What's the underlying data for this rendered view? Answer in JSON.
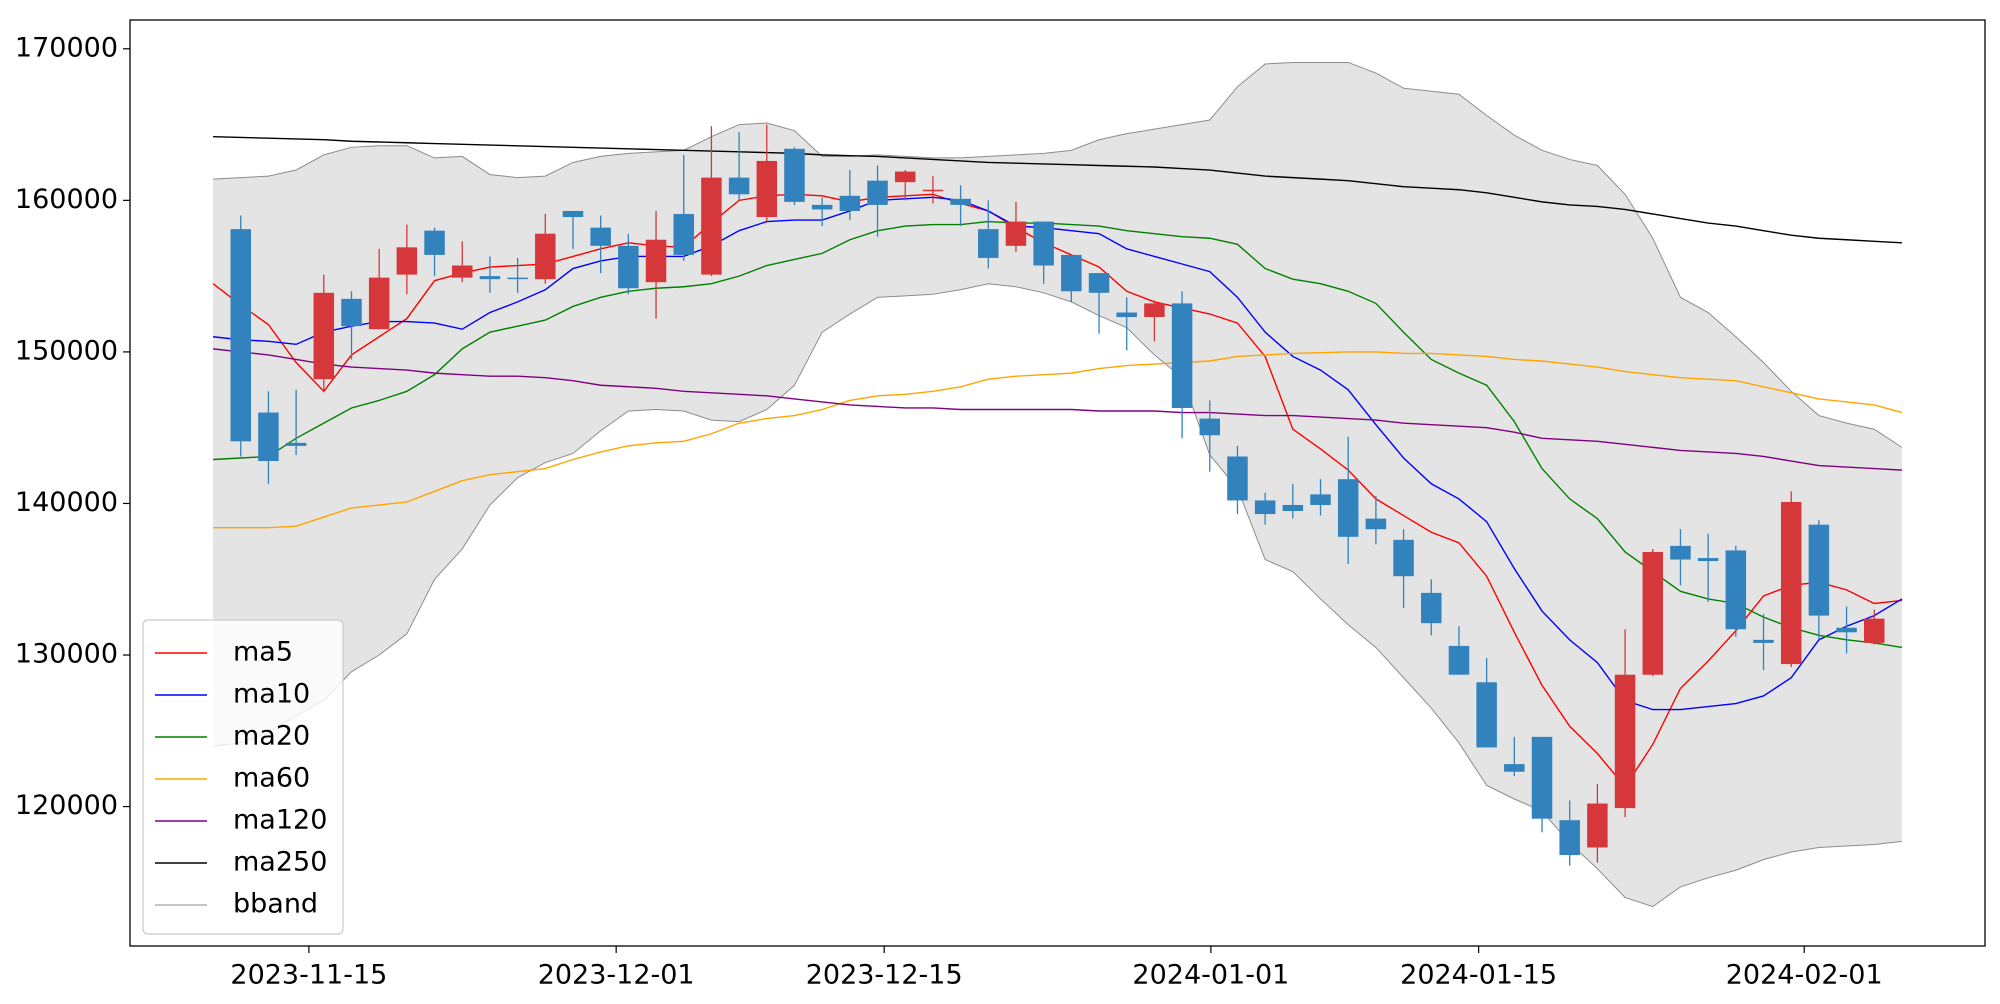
{
  "chart_data": {
    "type": "candlestick",
    "ylim": [
      110800,
      171900
    ],
    "yticks": [
      120000,
      130000,
      140000,
      150000,
      160000,
      170000
    ],
    "xlim": [
      -3.0,
      64.0
    ],
    "xticks": [
      {
        "value": 3.46,
        "label": "2023-11-15"
      },
      {
        "value": 14.56,
        "label": "2023-12-01"
      },
      {
        "value": 24.24,
        "label": "2023-12-15"
      },
      {
        "value": 36.04,
        "label": "2024-01-01"
      },
      {
        "value": 45.71,
        "label": "2024-01-15"
      },
      {
        "value": 57.47,
        "label": "2024-02-01"
      }
    ],
    "legend": "lower left",
    "candles": {
      "up_color": "#d6373a",
      "down_color": "#3182bd",
      "x": [
        1,
        2,
        3,
        4,
        5,
        6,
        7,
        8,
        9,
        10,
        11,
        12,
        13,
        14,
        15,
        16,
        17,
        18,
        19,
        20,
        21,
        22,
        23,
        24,
        25,
        26,
        27,
        28,
        29,
        30,
        31,
        32,
        33,
        34,
        35,
        36,
        37,
        38,
        39,
        40,
        41,
        42,
        43,
        44,
        45,
        46,
        47,
        48,
        49,
        50,
        51,
        52,
        53,
        54,
        55,
        56,
        57,
        58,
        59,
        60
      ],
      "open": [
        158100,
        146000,
        144000,
        148200,
        153500,
        151500,
        155100,
        158000,
        154900,
        155000,
        154900,
        154800,
        159300,
        158200,
        157000,
        154600,
        159100,
        155100,
        161500,
        158900,
        163400,
        159700,
        160300,
        161300,
        161200,
        160600,
        160100,
        158100,
        157000,
        158600,
        156400,
        155200,
        152600,
        152300,
        153200,
        145600,
        143100,
        140200,
        139900,
        140600,
        141600,
        139000,
        137600,
        134100,
        130600,
        128200,
        122800,
        124600,
        119100,
        117300,
        119900,
        128700,
        137200,
        136400,
        136900,
        131000,
        129400,
        138600,
        131800,
        130800
      ],
      "high": [
        159000,
        147400,
        147500,
        155100,
        154000,
        156800,
        158400,
        158200,
        157300,
        156300,
        156200,
        159100,
        159300,
        159000,
        157800,
        159300,
        163000,
        164900,
        164500,
        165000,
        163500,
        160200,
        162000,
        162300,
        162000,
        161600,
        161000,
        160000,
        159900,
        158600,
        156400,
        155200,
        153600,
        153400,
        154000,
        146800,
        143800,
        140700,
        141300,
        141600,
        144400,
        140500,
        138300,
        135000,
        131900,
        129800,
        124600,
        124600,
        120400,
        121500,
        131700,
        137000,
        138300,
        138000,
        137200,
        132700,
        140800,
        138900,
        133200,
        133000
      ],
      "low": [
        143100,
        141300,
        143200,
        147400,
        149500,
        151500,
        153800,
        155000,
        154600,
        153900,
        153900,
        154500,
        156800,
        155200,
        153800,
        152200,
        156000,
        155000,
        160000,
        158600,
        159700,
        158300,
        158700,
        157600,
        160000,
        159800,
        158300,
        155500,
        156600,
        154500,
        153300,
        151200,
        150100,
        150700,
        144300,
        142100,
        139300,
        138600,
        139000,
        139200,
        136000,
        137300,
        133100,
        131300,
        128700,
        123900,
        122000,
        118300,
        116100,
        116300,
        119300,
        128600,
        134600,
        133500,
        131200,
        129000,
        129200,
        131000,
        130100,
        130700
      ],
      "close": [
        144100,
        142800,
        143800,
        153900,
        151700,
        154900,
        156900,
        156400,
        155700,
        154800,
        154800,
        157800,
        158900,
        157000,
        154200,
        157400,
        156400,
        161500,
        160400,
        162600,
        159900,
        159400,
        159300,
        159700,
        161900,
        160700,
        159700,
        156200,
        158600,
        155700,
        154000,
        153900,
        152300,
        153200,
        146300,
        144500,
        140200,
        139300,
        139500,
        139900,
        137800,
        138300,
        135200,
        132100,
        128700,
        123900,
        122300,
        119200,
        116800,
        120200,
        128700,
        136800,
        136300,
        136200,
        131700,
        130800,
        140100,
        132600,
        131500,
        132400
      ]
    },
    "x": [
      0,
      1,
      2,
      3,
      4,
      5,
      6,
      7,
      8,
      9,
      10,
      11,
      12,
      13,
      14,
      15,
      16,
      17,
      18,
      19,
      20,
      21,
      22,
      23,
      24,
      25,
      26,
      27,
      28,
      29,
      30,
      31,
      32,
      33,
      34,
      35,
      36,
      37,
      38,
      39,
      40,
      41,
      42,
      43,
      44,
      45,
      46,
      47,
      48,
      49,
      50,
      51,
      52,
      53,
      54,
      55,
      56,
      57,
      58,
      59,
      60,
      61
    ],
    "bband": {
      "name": "bband",
      "color": "#8c8c8c",
      "fill": "#e4e4e4",
      "upper": [
        161400,
        161500,
        161600,
        162000,
        163000,
        163500,
        163600,
        163600,
        162800,
        162900,
        161700,
        161500,
        161600,
        162500,
        162900,
        163100,
        163200,
        163300,
        164200,
        165000,
        165100,
        164600,
        162900,
        162900,
        163000,
        162900,
        162800,
        162800,
        162900,
        163000,
        163100,
        163300,
        164000,
        164400,
        164700,
        165000,
        165300,
        167500,
        169000,
        169100,
        169100,
        169100,
        168400,
        167400,
        167200,
        167000,
        165600,
        164300,
        163300,
        162700,
        162300,
        160400,
        157500,
        153600,
        152600,
        151000,
        149300,
        147400,
        145800,
        145300,
        144900,
        143700
      ],
      "lower": [
        124000,
        124200,
        124900,
        126000,
        127000,
        128900,
        130000,
        131400,
        135000,
        137000,
        139900,
        141700,
        142700,
        143300,
        144800,
        146100,
        146200,
        146100,
        145500,
        145400,
        146200,
        147800,
        151300,
        152500,
        153600,
        153700,
        153800,
        154100,
        154500,
        154300,
        153900,
        153300,
        152400,
        151600,
        149800,
        148300,
        143200,
        141000,
        136300,
        135500,
        133700,
        132000,
        130500,
        128500,
        126500,
        124200,
        121400,
        120500,
        119700,
        117600,
        115900,
        114000,
        113400,
        114700,
        115300,
        115800,
        116500,
        117000,
        117300,
        117400,
        117500,
        117700
      ]
    },
    "series": [
      {
        "name": "ma5",
        "color": "#ff0000",
        "values": [
          154500,
          153100,
          151800,
          149300,
          147400,
          149800,
          151000,
          152200,
          154700,
          155200,
          155600,
          155700,
          155800,
          156300,
          156800,
          157200,
          157000,
          156900,
          158500,
          160000,
          160300,
          160400,
          160300,
          159900,
          160200,
          160300,
          160400,
          159800,
          159300,
          158200,
          157200,
          156400,
          155600,
          154000,
          153300,
          152900,
          152500,
          151900,
          149700,
          144900,
          143600,
          142200,
          140300,
          139200,
          138100,
          137400,
          135200,
          131500,
          128000,
          125300,
          123500,
          121300,
          124100,
          127800,
          129600,
          131600,
          133900,
          134600,
          134800,
          134300,
          133400,
          133600
        ]
      },
      {
        "name": "ma10",
        "color": "#0000ff",
        "values": [
          151000,
          150800,
          150700,
          150500,
          151300,
          151700,
          152000,
          152000,
          151900,
          151500,
          152600,
          153300,
          154100,
          155500,
          156000,
          156300,
          156300,
          156300,
          157000,
          158000,
          158600,
          158700,
          158700,
          159300,
          160000,
          160100,
          160200,
          160000,
          159300,
          158300,
          158200,
          158000,
          157800,
          156800,
          156300,
          155800,
          155300,
          153600,
          151300,
          149700,
          148800,
          147500,
          145200,
          143000,
          141300,
          140300,
          138800,
          135700,
          132900,
          131000,
          129500,
          127000,
          126400,
          126400,
          126600,
          126800,
          127300,
          128500,
          131000,
          131900,
          132600,
          133700
        ]
      },
      {
        "name": "ma20",
        "color": "#008000",
        "values": [
          142900,
          143000,
          143100,
          144300,
          145300,
          146300,
          146800,
          147400,
          148500,
          150200,
          151300,
          151700,
          152100,
          153000,
          153600,
          154000,
          154200,
          154300,
          154500,
          155000,
          155700,
          156100,
          156500,
          157400,
          158000,
          158300,
          158400,
          158400,
          158600,
          158500,
          158500,
          158400,
          158300,
          158000,
          157800,
          157600,
          157500,
          157100,
          155500,
          154800,
          154500,
          154000,
          153200,
          151300,
          149500,
          148600,
          147800,
          145400,
          142300,
          140300,
          139000,
          136800,
          135500,
          134200,
          133700,
          133400,
          132500,
          131800,
          131300,
          131000,
          130800,
          130500
        ]
      },
      {
        "name": "ma60",
        "color": "#ffa500",
        "values": [
          138400,
          138400,
          138400,
          138500,
          139100,
          139700,
          139900,
          140100,
          140800,
          141500,
          141900,
          142100,
          142300,
          142900,
          143400,
          143800,
          144000,
          144100,
          144600,
          145300,
          145600,
          145800,
          146200,
          146800,
          147100,
          147200,
          147400,
          147700,
          148200,
          148400,
          148500,
          148600,
          148900,
          149100,
          149200,
          149300,
          149400,
          149700,
          149800,
          149900,
          149950,
          150000,
          150000,
          149900,
          149900,
          149800,
          149700,
          149500,
          149400,
          149200,
          149000,
          148700,
          148500,
          148300,
          148200,
          148100,
          147700,
          147300,
          146900,
          146700,
          146500,
          146000
        ]
      },
      {
        "name": "ma120",
        "color": "#800080",
        "values": [
          150200,
          150000,
          149800,
          149500,
          149200,
          149000,
          148900,
          148800,
          148600,
          148500,
          148400,
          148400,
          148300,
          148100,
          147800,
          147700,
          147600,
          147400,
          147300,
          147200,
          147100,
          146900,
          146700,
          146500,
          146400,
          146300,
          146300,
          146200,
          146200,
          146200,
          146200,
          146200,
          146100,
          146100,
          146100,
          146000,
          146000,
          145900,
          145800,
          145800,
          145700,
          145600,
          145500,
          145300,
          145200,
          145100,
          145000,
          144700,
          144300,
          144200,
          144100,
          143900,
          143700,
          143500,
          143400,
          143300,
          143100,
          142800,
          142500,
          142400,
          142300,
          142200
        ]
      },
      {
        "name": "ma250",
        "color": "#000000",
        "values": [
          164200,
          164150,
          164100,
          164050,
          164000,
          163900,
          163850,
          163800,
          163750,
          163700,
          163650,
          163600,
          163550,
          163500,
          163450,
          163400,
          163350,
          163300,
          163250,
          163200,
          163150,
          163100,
          163000,
          162950,
          162900,
          162800,
          162700,
          162600,
          162500,
          162450,
          162400,
          162350,
          162300,
          162250,
          162200,
          162100,
          162000,
          161800,
          161600,
          161500,
          161400,
          161300,
          161100,
          160900,
          160800,
          160700,
          160500,
          160200,
          159900,
          159700,
          159600,
          159400,
          159100,
          158800,
          158500,
          158300,
          158000,
          157700,
          157500,
          157400,
          157300,
          157200
        ]
      }
    ]
  }
}
